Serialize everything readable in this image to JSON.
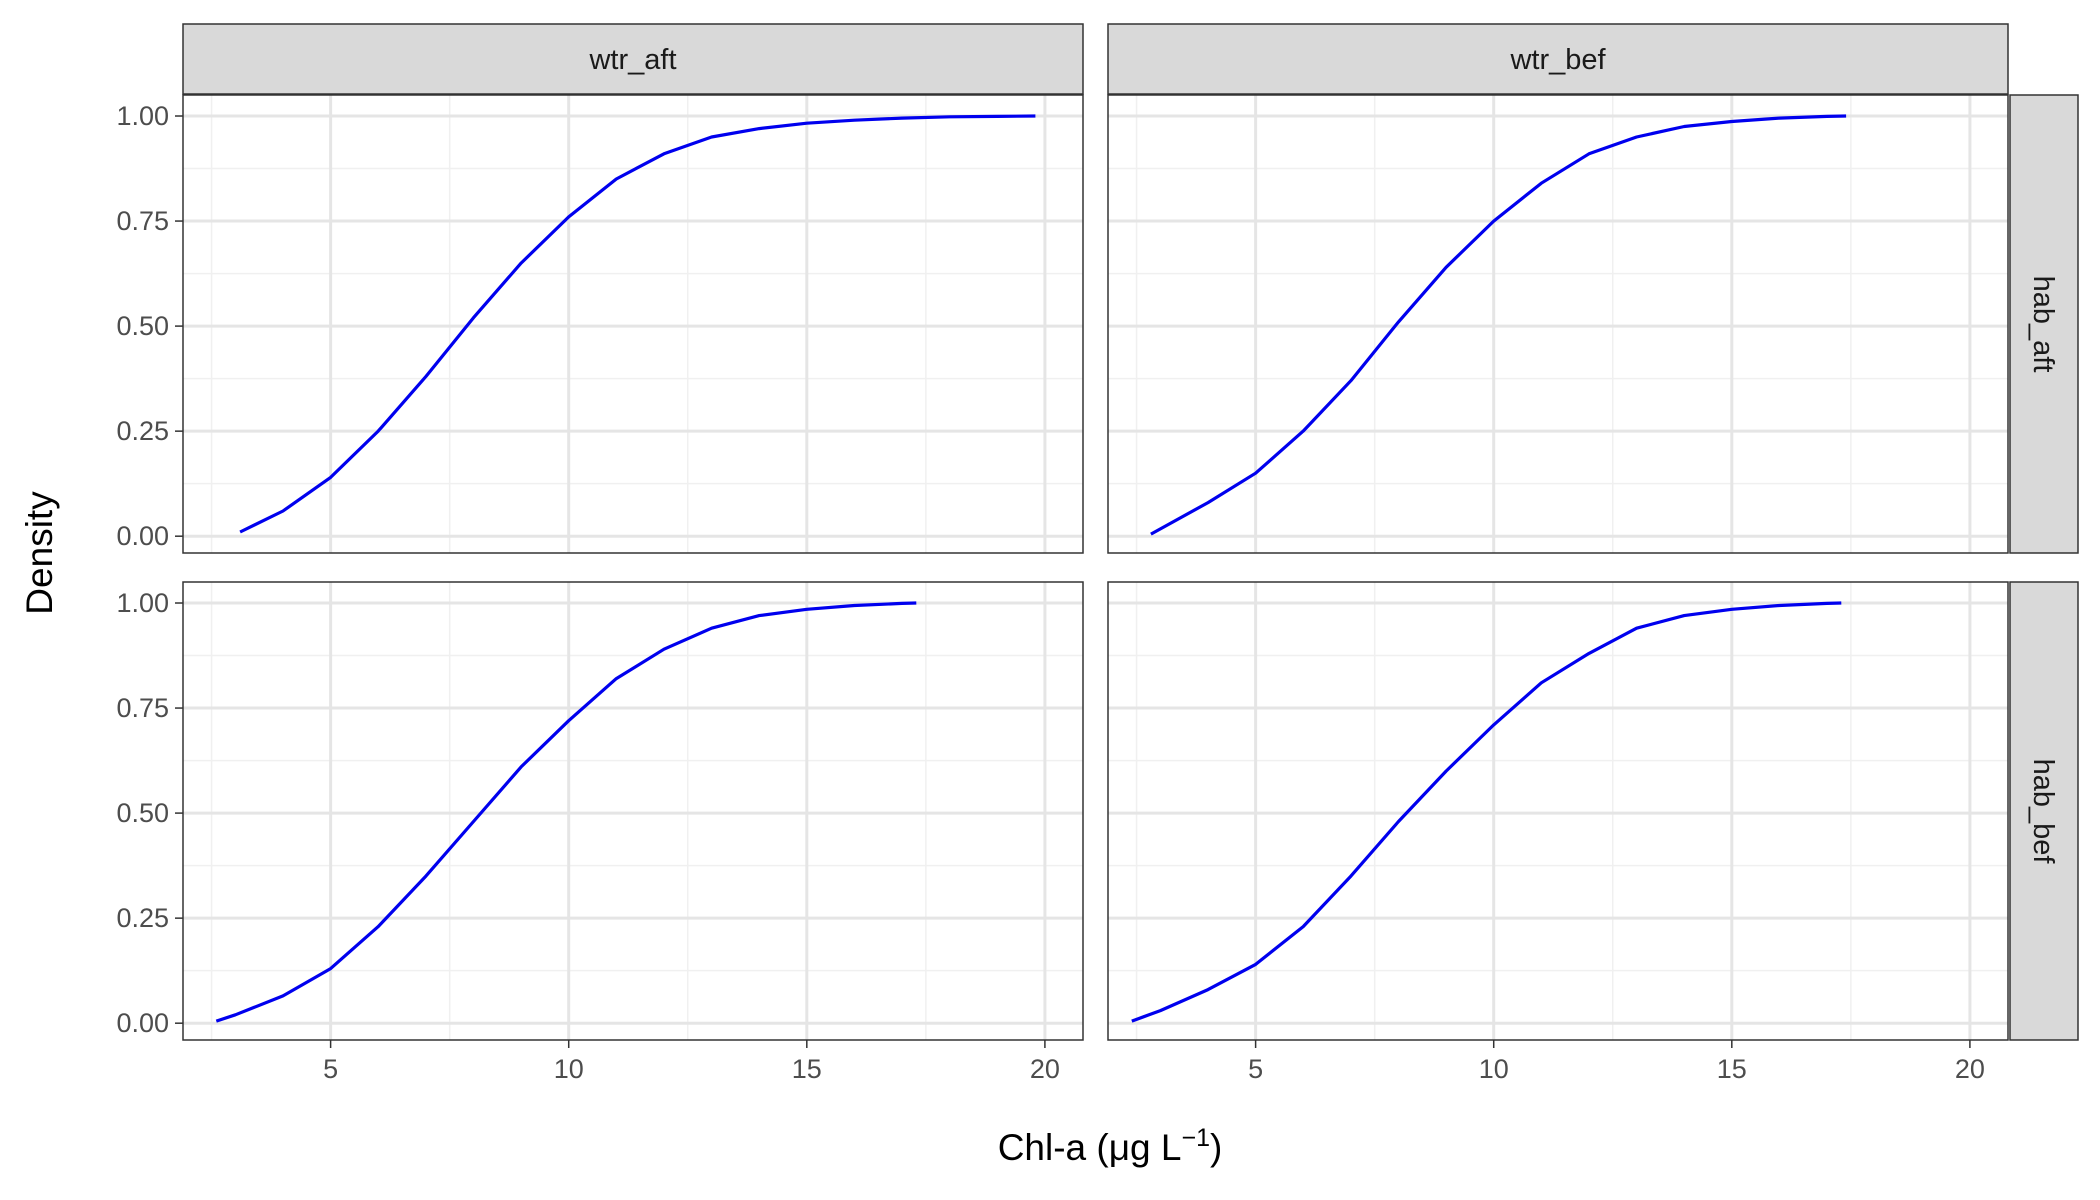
{
  "chart_data": {
    "type": "line",
    "title": "",
    "xlabel": "Chl-a (μg L",
    "xlabel_superscript": "−1",
    "xlabel_suffix": ")",
    "ylabel": "Density",
    "xlim": [
      1.9,
      20.8
    ],
    "ylim": [
      -0.04,
      1.05
    ],
    "x_ticks": [
      5,
      10,
      15,
      20
    ],
    "x_tick_labels": [
      "5",
      "10",
      "15",
      "20"
    ],
    "y_ticks": [
      0,
      0.25,
      0.5,
      0.75,
      1.0
    ],
    "y_tick_labels": [
      "0.00",
      "0.25",
      "0.50",
      "0.75",
      "1.00"
    ],
    "grid": true,
    "line_color": "#0000ee",
    "col_facets": [
      "wtr_aft",
      "wtr_bef"
    ],
    "row_facets": [
      "hab_aft",
      "hab_bef"
    ],
    "panels": [
      {
        "col": "wtr_aft",
        "row": "hab_aft",
        "x": [
          3.1,
          4,
          5,
          6,
          7,
          8,
          9,
          10,
          11,
          12,
          13,
          14,
          15,
          16,
          17,
          18,
          19,
          19.8
        ],
        "y": [
          0.01,
          0.06,
          0.14,
          0.25,
          0.38,
          0.52,
          0.65,
          0.76,
          0.85,
          0.91,
          0.95,
          0.97,
          0.983,
          0.99,
          0.995,
          0.998,
          0.999,
          1.0
        ]
      },
      {
        "col": "wtr_bef",
        "row": "hab_aft",
        "x": [
          2.8,
          4,
          5,
          6,
          7,
          8,
          9,
          10,
          11,
          12,
          13,
          14,
          15,
          16,
          17,
          17.4
        ],
        "y": [
          0.005,
          0.08,
          0.15,
          0.25,
          0.37,
          0.51,
          0.64,
          0.75,
          0.84,
          0.91,
          0.95,
          0.975,
          0.987,
          0.995,
          0.999,
          1.0
        ]
      },
      {
        "col": "wtr_aft",
        "row": "hab_bef",
        "x": [
          2.6,
          3,
          4,
          5,
          6,
          7,
          8,
          9,
          10,
          11,
          12,
          13,
          14,
          15,
          16,
          17,
          17.3
        ],
        "y": [
          0.005,
          0.02,
          0.065,
          0.13,
          0.23,
          0.35,
          0.48,
          0.61,
          0.72,
          0.82,
          0.89,
          0.94,
          0.97,
          0.985,
          0.994,
          0.999,
          1.0
        ]
      },
      {
        "col": "wtr_bef",
        "row": "hab_bef",
        "x": [
          2.4,
          3,
          4,
          5,
          6,
          7,
          8,
          9,
          10,
          11,
          12,
          13,
          14,
          15,
          16,
          17,
          17.3
        ],
        "y": [
          0.005,
          0.03,
          0.08,
          0.14,
          0.23,
          0.35,
          0.48,
          0.6,
          0.71,
          0.81,
          0.88,
          0.94,
          0.97,
          0.985,
          0.994,
          0.999,
          1.0
        ]
      }
    ]
  }
}
